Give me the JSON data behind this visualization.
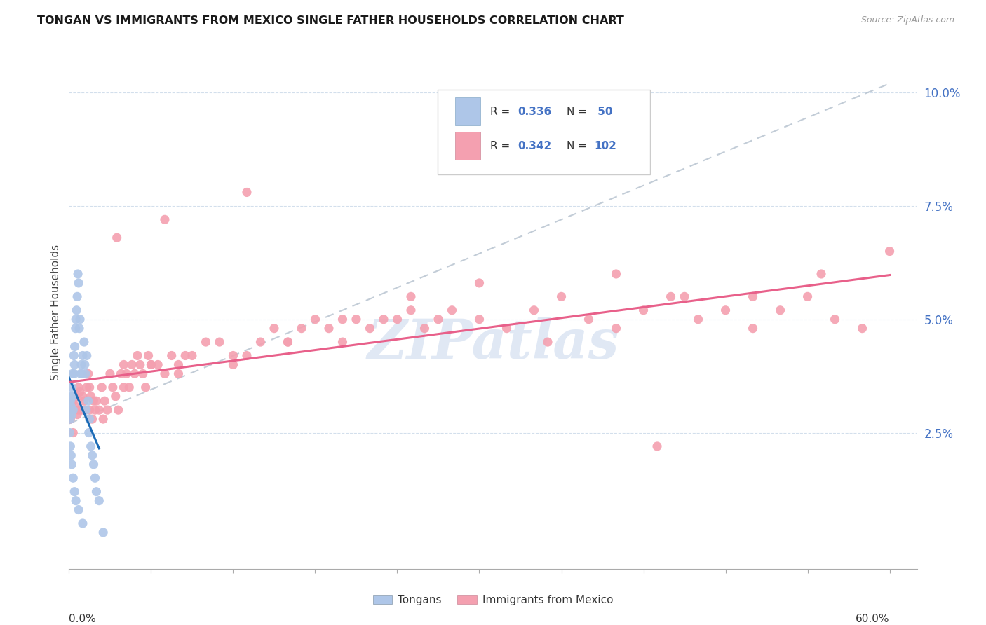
{
  "title": "TONGAN VS IMMIGRANTS FROM MEXICO SINGLE FATHER HOUSEHOLDS CORRELATION CHART",
  "source": "Source: ZipAtlas.com",
  "ylabel": "Single Father Households",
  "xlim": [
    0.0,
    0.62
  ],
  "ylim": [
    -0.005,
    0.108
  ],
  "tongan_color": "#aec6e8",
  "mexico_color": "#f4a0b0",
  "tongan_line_color": "#1a6ab5",
  "mexico_line_color": "#e8608a",
  "diagonal_color": "#b8c4d0",
  "background_color": "#ffffff",
  "watermark": "ZIPatlas",
  "tongan_x": [
    0.0005,
    0.001,
    0.0008,
    0.0012,
    0.0015,
    0.002,
    0.0018,
    0.0025,
    0.003,
    0.0028,
    0.0035,
    0.004,
    0.0038,
    0.0042,
    0.005,
    0.0048,
    0.006,
    0.0055,
    0.007,
    0.0065,
    0.008,
    0.0075,
    0.009,
    0.0085,
    0.01,
    0.0095,
    0.011,
    0.012,
    0.0115,
    0.013,
    0.0125,
    0.014,
    0.015,
    0.0145,
    0.016,
    0.017,
    0.018,
    0.019,
    0.02,
    0.022,
    0.0005,
    0.001,
    0.0015,
    0.002,
    0.003,
    0.004,
    0.005,
    0.007,
    0.01,
    0.025
  ],
  "tongan_y": [
    0.03,
    0.032,
    0.028,
    0.031,
    0.033,
    0.029,
    0.035,
    0.038,
    0.03,
    0.033,
    0.042,
    0.04,
    0.038,
    0.044,
    0.05,
    0.048,
    0.055,
    0.052,
    0.058,
    0.06,
    0.05,
    0.048,
    0.04,
    0.038,
    0.042,
    0.038,
    0.045,
    0.038,
    0.04,
    0.042,
    0.03,
    0.032,
    0.028,
    0.025,
    0.022,
    0.02,
    0.018,
    0.015,
    0.012,
    0.01,
    0.025,
    0.022,
    0.02,
    0.018,
    0.015,
    0.012,
    0.01,
    0.008,
    0.005,
    0.003
  ],
  "mexico_x": [
    0.001,
    0.002,
    0.003,
    0.004,
    0.005,
    0.006,
    0.007,
    0.008,
    0.009,
    0.01,
    0.011,
    0.012,
    0.013,
    0.014,
    0.015,
    0.016,
    0.017,
    0.018,
    0.019,
    0.02,
    0.022,
    0.024,
    0.026,
    0.028,
    0.03,
    0.032,
    0.034,
    0.036,
    0.038,
    0.04,
    0.042,
    0.044,
    0.046,
    0.048,
    0.05,
    0.052,
    0.054,
    0.056,
    0.058,
    0.06,
    0.065,
    0.07,
    0.075,
    0.08,
    0.085,
    0.09,
    0.1,
    0.11,
    0.12,
    0.13,
    0.14,
    0.15,
    0.16,
    0.17,
    0.18,
    0.19,
    0.2,
    0.21,
    0.22,
    0.23,
    0.24,
    0.25,
    0.26,
    0.27,
    0.28,
    0.3,
    0.32,
    0.34,
    0.36,
    0.38,
    0.4,
    0.42,
    0.44,
    0.46,
    0.48,
    0.5,
    0.52,
    0.54,
    0.56,
    0.58,
    0.003,
    0.007,
    0.015,
    0.025,
    0.04,
    0.06,
    0.08,
    0.12,
    0.16,
    0.2,
    0.25,
    0.3,
    0.35,
    0.4,
    0.45,
    0.5,
    0.55,
    0.6,
    0.035,
    0.07,
    0.13,
    0.43
  ],
  "mexico_y": [
    0.028,
    0.03,
    0.032,
    0.031,
    0.033,
    0.029,
    0.035,
    0.034,
    0.03,
    0.033,
    0.032,
    0.03,
    0.035,
    0.038,
    0.03,
    0.033,
    0.028,
    0.032,
    0.03,
    0.032,
    0.03,
    0.035,
    0.032,
    0.03,
    0.038,
    0.035,
    0.033,
    0.03,
    0.038,
    0.04,
    0.038,
    0.035,
    0.04,
    0.038,
    0.042,
    0.04,
    0.038,
    0.035,
    0.042,
    0.04,
    0.04,
    0.038,
    0.042,
    0.04,
    0.042,
    0.042,
    0.045,
    0.045,
    0.04,
    0.042,
    0.045,
    0.048,
    0.045,
    0.048,
    0.05,
    0.048,
    0.045,
    0.05,
    0.048,
    0.05,
    0.05,
    0.052,
    0.048,
    0.05,
    0.052,
    0.05,
    0.048,
    0.052,
    0.055,
    0.05,
    0.048,
    0.052,
    0.055,
    0.05,
    0.052,
    0.048,
    0.052,
    0.055,
    0.05,
    0.048,
    0.025,
    0.03,
    0.035,
    0.028,
    0.035,
    0.04,
    0.038,
    0.042,
    0.045,
    0.05,
    0.055,
    0.058,
    0.045,
    0.06,
    0.055,
    0.055,
    0.06,
    0.065,
    0.068,
    0.072,
    0.078,
    0.022
  ],
  "ytick_positions": [
    0.025,
    0.05,
    0.075,
    0.1
  ],
  "ytick_labels": [
    "2.5%",
    "5.0%",
    "7.5%",
    "10.0%"
  ]
}
